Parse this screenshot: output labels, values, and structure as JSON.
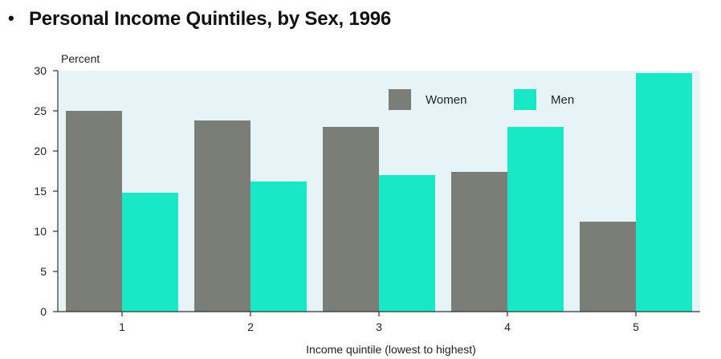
{
  "title_bullet": "•",
  "title": "Personal Income Quintiles, by Sex, 1996",
  "chart_data": {
    "type": "bar",
    "title": "Personal Income Quintiles, by Sex, 1996",
    "xlabel": "Income quintile (lowest to highest)",
    "ylabel": "Percent",
    "categories": [
      "1",
      "2",
      "3",
      "4",
      "5"
    ],
    "series": [
      {
        "name": "Women",
        "values": [
          25,
          23.8,
          23,
          17.4,
          11.2
        ],
        "color": "#7b7d77"
      },
      {
        "name": "Men",
        "values": [
          14.8,
          16.2,
          17,
          23,
          29.7
        ],
        "color": "#19e8c6"
      }
    ],
    "ylim": [
      0,
      30
    ],
    "yticks": [
      "0",
      "5",
      "10",
      "15",
      "20",
      "25",
      "30"
    ],
    "grid": false,
    "legend": "top-right",
    "plot_background": "#e6f4f8"
  }
}
